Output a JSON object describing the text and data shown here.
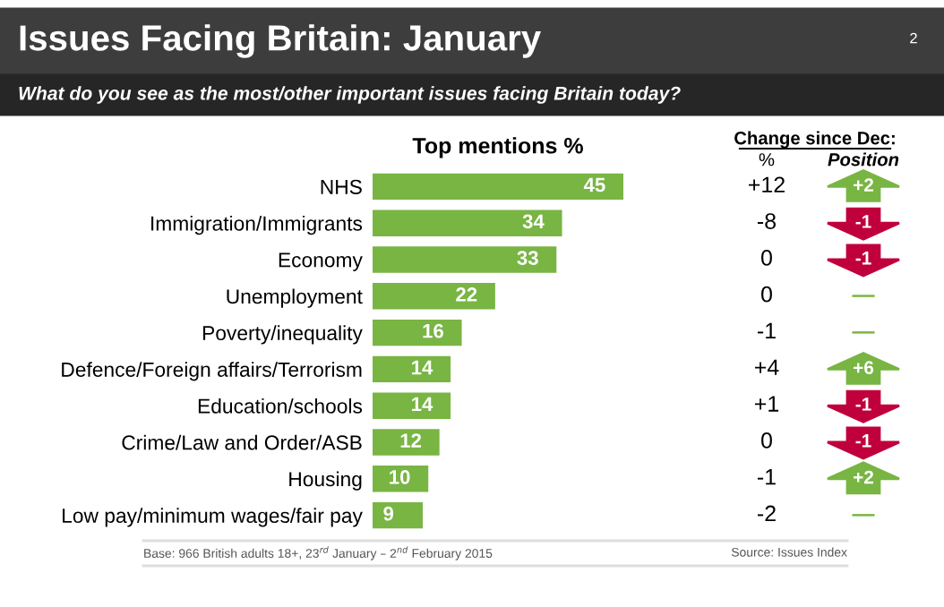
{
  "chart_data": {
    "type": "bar",
    "orientation": "horizontal",
    "title": "Issues Facing Britain: January",
    "subtitle": "What do you see as the most/other important issues facing Britain today?",
    "xlabel": "Top mentions %",
    "categories": [
      "NHS",
      "Immigration/Immigrants",
      "Economy",
      "Unemployment",
      "Poverty/inequality",
      "Defence/Foreign affairs/Terrorism",
      "Education/schools",
      "Crime/Law and Order/ASB",
      "Housing",
      "Low pay/minimum wages/fair pay"
    ],
    "values": [
      45,
      34,
      33,
      22,
      16,
      14,
      14,
      12,
      10,
      9
    ],
    "color": "#78b543",
    "data_labels": true,
    "annotations": [
      "2",
      "Change since Dec:",
      "%",
      "Position",
      "Base: 966 British adults 18+, 23$^{rd}$ January – 2$^{nd}$ February 2015",
      "Source: Issues Index",
      "+12",
      "-8",
      "0",
      "0",
      "-1",
      "+4",
      "+1",
      "0",
      "-1",
      "-2",
      "+2",
      "-1",
      "-1",
      "—",
      "—",
      "+6",
      "-1",
      "-1",
      "+2",
      "—"
    ]
  }
}
